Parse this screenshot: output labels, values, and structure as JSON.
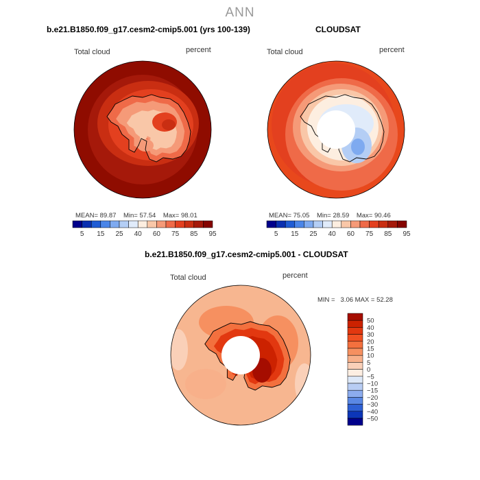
{
  "title": "ANN",
  "panels": [
    {
      "title": "b.e21.B1850.f09_g17.cesm2-cmip5.001 (yrs 100-139)",
      "left_label": "Total cloud",
      "right_label": "percent",
      "stats": {
        "mean_label": "MEAN=",
        "mean": "89.87",
        "min_label": "Min=",
        "min": "57.54",
        "max_label": "Max=",
        "max": "98.01"
      }
    },
    {
      "title": "CLOUDSAT",
      "left_label": "Total cloud",
      "right_label": "percent",
      "stats": {
        "mean_label": "MEAN=",
        "mean": "75.05",
        "min_label": "Min=",
        "min": "28.59",
        "max_label": "Max=",
        "max": "90.46"
      }
    },
    {
      "title": "b.e21.B1850.f09_g17.cesm2-cmip5.001 - CLOUDSAT",
      "left_label": "Total cloud",
      "right_label": "percent",
      "stats": {
        "min_label": "MIN =",
        "min": "3.06",
        "max_label": "MAX =",
        "max": "52.28"
      }
    }
  ],
  "abs_colorbar": {
    "labels": [
      "5",
      "15",
      "25",
      "40",
      "60",
      "75",
      "85",
      "95"
    ],
    "colors": [
      "#00008b",
      "#0a2fb0",
      "#1f5cd4",
      "#4a85e8",
      "#7eaaf0",
      "#b4cef5",
      "#e0ebfa",
      "#fdeee0",
      "#f9c7a8",
      "#f59a78",
      "#ef6a48",
      "#e3401f",
      "#c92e12",
      "#a5190a",
      "#850400"
    ]
  },
  "diff_colorbar": {
    "labels": [
      "50",
      "40",
      "30",
      "20",
      "15",
      "10",
      "5",
      "0",
      "−5",
      "−10",
      "−15",
      "−20",
      "−30",
      "−40",
      "−50"
    ],
    "colors": [
      "#a50d00",
      "#cc2200",
      "#e23810",
      "#f05022",
      "#f3703e",
      "#f69060",
      "#f8b08a",
      "#fad0b8",
      "#fdeee2",
      "#dde8f8",
      "#b8cdf4",
      "#8cacee",
      "#5a88e4",
      "#2e60d4",
      "#0c36b8",
      "#00008b"
    ]
  },
  "colors": {
    "model_ocean": "#8f0c00",
    "obs_ocean": "#e8481c",
    "diff_ocean": "#f7b690",
    "coast": "#000000"
  }
}
